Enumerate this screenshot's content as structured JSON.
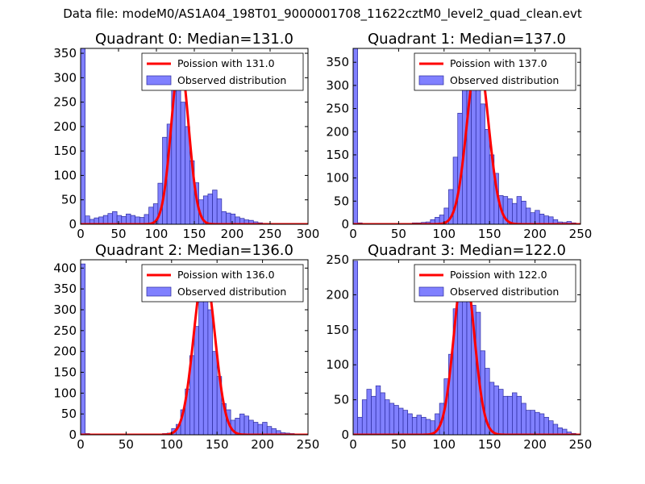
{
  "suptitle": "Data file: modeM0/AS1A04_198T01_9000001708_11622cztM0_level2_quad_clean.evt",
  "legend_labels": {
    "poisson_prefix": "Poission with",
    "observed": "Observed distribution"
  },
  "colors": {
    "hist_fill": "#8080ff",
    "hist_edge": "#2b2b9e",
    "poisson_line": "#ff0000"
  },
  "chart_data": [
    {
      "type": "bar",
      "title": "Quadrant 0: Median=131.0",
      "poisson_label": "Poission with 131.0",
      "median": 131.0,
      "xlim": [
        0,
        300
      ],
      "ylim": [
        0,
        360
      ],
      "xticks": [
        0,
        50,
        100,
        150,
        200,
        250,
        300
      ],
      "yticks": [
        0,
        50,
        100,
        150,
        200,
        250,
        300,
        350
      ],
      "bin_width": 6,
      "bins_start": [
        0,
        6,
        12,
        18,
        24,
        30,
        36,
        42,
        48,
        54,
        60,
        66,
        72,
        78,
        84,
        90,
        96,
        102,
        108,
        114,
        120,
        126,
        132,
        138,
        144,
        150,
        156,
        162,
        168,
        174,
        180,
        186,
        192,
        198,
        204,
        210,
        216,
        222,
        228,
        234,
        240,
        246,
        252
      ],
      "counts": [
        360,
        17,
        10,
        13,
        15,
        18,
        22,
        26,
        18,
        16,
        21,
        18,
        15,
        14,
        20,
        35,
        42,
        84,
        178,
        205,
        300,
        330,
        250,
        200,
        130,
        85,
        50,
        58,
        62,
        70,
        52,
        26,
        23,
        21,
        15,
        12,
        9,
        8,
        5,
        3,
        2,
        1,
        1
      ],
      "poisson_peak": 335
    },
    {
      "type": "bar",
      "title": "Quadrant 1: Median=137.0",
      "poisson_label": "Poission with 137.0",
      "median": 137.0,
      "xlim": [
        0,
        250
      ],
      "ylim": [
        0,
        380
      ],
      "xticks": [
        0,
        50,
        100,
        150,
        200,
        250
      ],
      "yticks": [
        0,
        50,
        100,
        150,
        200,
        250,
        300,
        350
      ],
      "bin_width": 5,
      "bins_start": [
        0,
        5,
        10,
        15,
        20,
        25,
        30,
        35,
        40,
        45,
        50,
        55,
        60,
        65,
        70,
        75,
        80,
        85,
        90,
        95,
        100,
        105,
        110,
        115,
        120,
        125,
        130,
        135,
        140,
        145,
        150,
        155,
        160,
        165,
        170,
        175,
        180,
        185,
        190,
        195,
        200,
        205,
        210,
        215,
        220,
        225,
        230,
        235,
        240
      ],
      "counts": [
        380,
        3,
        2,
        2,
        2,
        2,
        2,
        2,
        2,
        2,
        2,
        2,
        2,
        3,
        3,
        4,
        5,
        10,
        15,
        20,
        35,
        75,
        145,
        240,
        310,
        340,
        350,
        300,
        260,
        205,
        150,
        110,
        62,
        60,
        55,
        45,
        60,
        50,
        35,
        25,
        30,
        22,
        18,
        16,
        10,
        5,
        4,
        6,
        3
      ],
      "poisson_peak": 365
    },
    {
      "type": "bar",
      "title": "Quadrant 2: Median=136.0",
      "poisson_label": "Poission with 136.0",
      "median": 136.0,
      "xlim": [
        0,
        250
      ],
      "ylim": [
        0,
        420
      ],
      "xticks": [
        0,
        50,
        100,
        150,
        200,
        250
      ],
      "yticks": [
        0,
        50,
        100,
        150,
        200,
        250,
        300,
        350,
        400
      ],
      "bin_width": 5,
      "bins_start": [
        0,
        5,
        10,
        15,
        20,
        25,
        30,
        35,
        40,
        45,
        50,
        55,
        60,
        65,
        70,
        75,
        80,
        85,
        90,
        95,
        100,
        105,
        110,
        115,
        120,
        125,
        130,
        135,
        140,
        145,
        150,
        155,
        160,
        165,
        170,
        175,
        180,
        185,
        190,
        195,
        200,
        205,
        210,
        215,
        220,
        225,
        230,
        235,
        240
      ],
      "counts": [
        410,
        3,
        2,
        2,
        2,
        2,
        2,
        2,
        2,
        2,
        2,
        2,
        2,
        2,
        2,
        2,
        2,
        2,
        3,
        4,
        15,
        25,
        60,
        110,
        190,
        260,
        340,
        380,
        300,
        200,
        140,
        75,
        60,
        35,
        40,
        50,
        45,
        35,
        30,
        25,
        30,
        20,
        15,
        10,
        5,
        4,
        3,
        2,
        2
      ],
      "poisson_peak": 395
    },
    {
      "type": "bar",
      "title": "Quadrant 3: Median=122.0",
      "poisson_label": "Poission with 122.0",
      "median": 122.0,
      "xlim": [
        0,
        250
      ],
      "ylim": [
        0,
        250
      ],
      "xticks": [
        0,
        50,
        100,
        150,
        200,
        250
      ],
      "yticks": [
        0,
        50,
        100,
        150,
        200,
        250
      ],
      "bin_width": 5,
      "bins_start": [
        0,
        5,
        10,
        15,
        20,
        25,
        30,
        35,
        40,
        45,
        50,
        55,
        60,
        65,
        70,
        75,
        80,
        85,
        90,
        95,
        100,
        105,
        110,
        115,
        120,
        125,
        130,
        135,
        140,
        145,
        150,
        155,
        160,
        165,
        170,
        175,
        180,
        185,
        190,
        195,
        200,
        205,
        210,
        215,
        220,
        225,
        230,
        235,
        240
      ],
      "counts": [
        248,
        25,
        50,
        65,
        55,
        70,
        60,
        50,
        45,
        42,
        38,
        35,
        30,
        25,
        28,
        25,
        22,
        20,
        30,
        45,
        80,
        115,
        180,
        215,
        235,
        230,
        185,
        175,
        120,
        95,
        75,
        70,
        65,
        55,
        55,
        60,
        55,
        45,
        35,
        35,
        32,
        30,
        25,
        20,
        15,
        10,
        8,
        4,
        2
      ],
      "poisson_peak": 240
    }
  ]
}
